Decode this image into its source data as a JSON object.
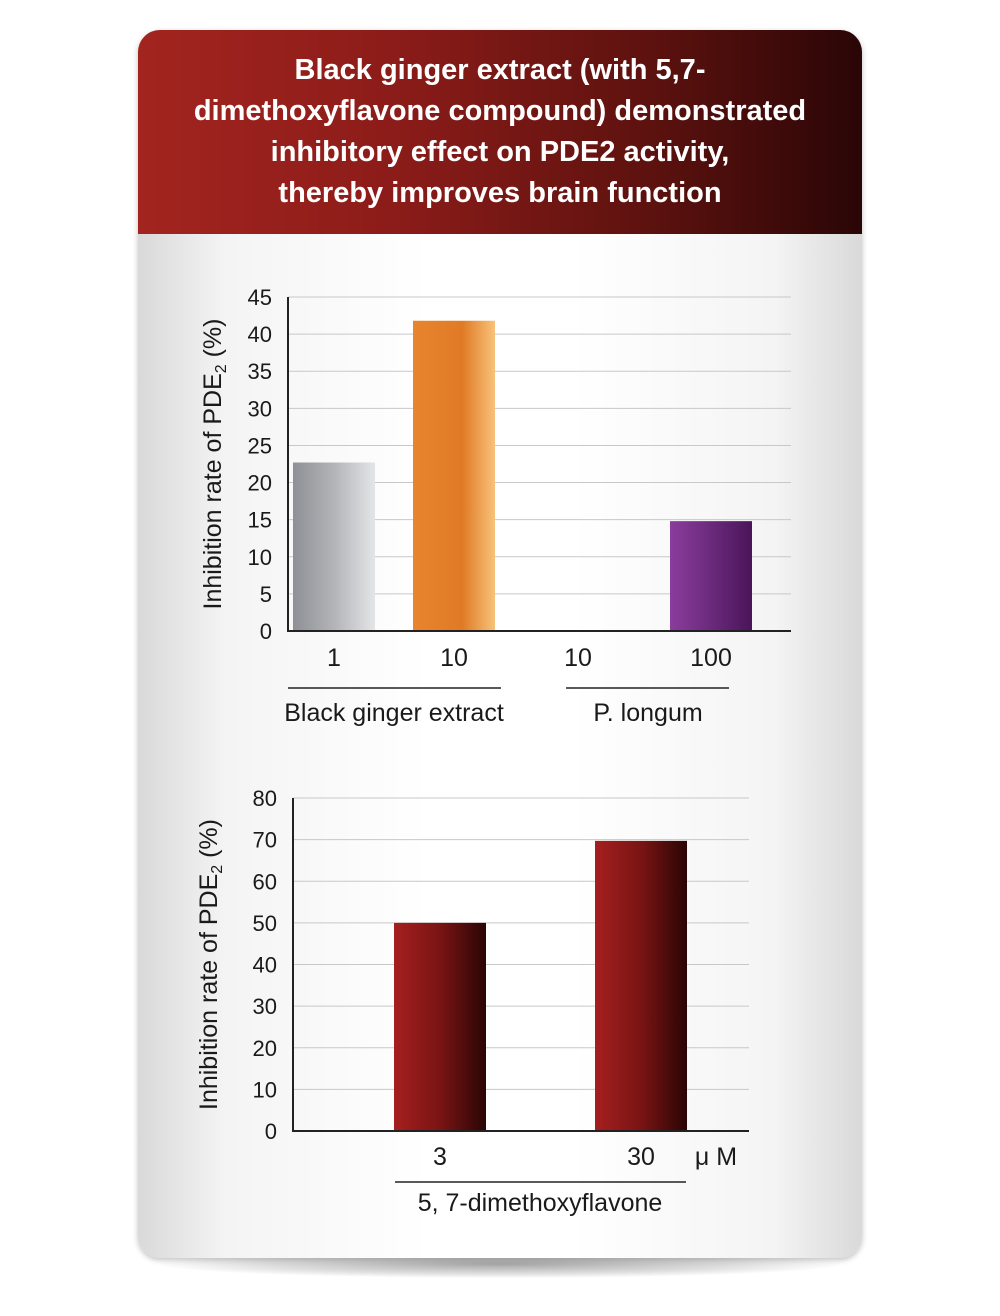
{
  "header": {
    "title_lines": [
      "Black ginger extract (with 5,7-",
      "dimethoxyflavone compound) demonstrated",
      "inhibitory effect on PDE2 activity,",
      "thereby improves brain function"
    ]
  },
  "colors": {
    "header_start": "#a3241f",
    "header_end": "#2a0606",
    "bar_gray": "#b3b4b8",
    "bar_orange": "#e07a26",
    "bar_purple": "#6b2a7c",
    "bar_maroon": "#7a1414"
  },
  "chart_data": [
    {
      "type": "bar",
      "ylabel": "Inhibition rate of PDE",
      "ylabel_sub": "2",
      "ylabel_suffix": " (%)",
      "ylim": [
        0,
        45
      ],
      "yticks": [
        0,
        5,
        10,
        15,
        20,
        25,
        30,
        35,
        40,
        45
      ],
      "grid": true,
      "categories": [
        "1",
        "10",
        "10",
        "100"
      ],
      "values": [
        22.7,
        41.8,
        0,
        14.8
      ],
      "bar_colors": [
        "gray",
        "orange",
        "none",
        "purple"
      ],
      "groups": [
        {
          "label": "Black ginger extract",
          "categories": [
            0,
            1
          ]
        },
        {
          "label": "P. longum",
          "categories": [
            2,
            3
          ]
        }
      ]
    },
    {
      "type": "bar",
      "ylabel": "Inhibition rate of PDE",
      "ylabel_sub": "2",
      "ylabel_suffix": " (%)",
      "ylim": [
        0,
        80
      ],
      "yticks": [
        0,
        10,
        20,
        30,
        40,
        50,
        60,
        70,
        80
      ],
      "grid": true,
      "categories": [
        "3",
        "30"
      ],
      "values": [
        50,
        69.7
      ],
      "bar_colors": [
        "maroon",
        "maroon"
      ],
      "unit": "μ M",
      "groups": [
        {
          "label": "5, 7-dimethoxyflavone",
          "categories": [
            0,
            1
          ]
        }
      ]
    }
  ]
}
